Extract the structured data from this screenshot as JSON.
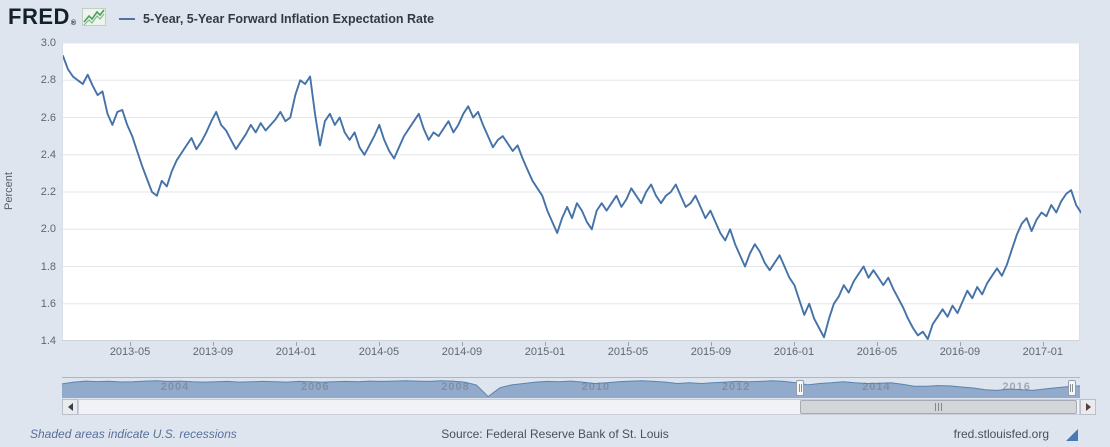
{
  "header": {
    "logo_text": "FRED",
    "registered_mark": "®",
    "legend_label": "5-Year, 5-Year Forward Inflation Expectation Rate"
  },
  "footer": {
    "recessions_note": "Shaded areas indicate U.S. recessions",
    "source": "Source: Federal Reserve Bank of St. Louis",
    "site": "fred.stlouisfed.org"
  },
  "colors": {
    "background": "#dee5ef",
    "plot_background": "#ffffff",
    "line": "#4572a7",
    "gridline": "#e4e6e9",
    "navigator_fill": "#92abcc",
    "navigator_stroke": "#5b83ae",
    "logo_sparkline_green": "#4d9e5f",
    "footer_accent": "#4779b4"
  },
  "chart_data": {
    "type": "line",
    "title": "5-Year, 5-Year Forward Inflation Expectation Rate",
    "ylabel": "Percent",
    "ylim": [
      1.4,
      3.0
    ],
    "grid": "horizontal",
    "legend_position": "top-left",
    "yticks": [
      "3.0",
      "2.8",
      "2.6",
      "2.4",
      "2.2",
      "2.0",
      "1.8",
      "1.6",
      "1.4"
    ],
    "xticks": [
      "2013-05",
      "2013-09",
      "2014-01",
      "2014-05",
      "2014-09",
      "2015-01",
      "2015-05",
      "2015-09",
      "2016-01",
      "2016-05",
      "2016-09",
      "2017-01"
    ],
    "series": [
      {
        "name": "5-Year, 5-Year Forward Inflation Expectation Rate",
        "units": "Percent",
        "x_start": "2013-02",
        "x_end": "2017-02",
        "sampling": "weekly",
        "values": [
          2.93,
          2.86,
          2.82,
          2.8,
          2.78,
          2.83,
          2.77,
          2.72,
          2.74,
          2.62,
          2.56,
          2.63,
          2.64,
          2.56,
          2.5,
          2.42,
          2.34,
          2.27,
          2.2,
          2.18,
          2.26,
          2.23,
          2.31,
          2.37,
          2.41,
          2.45,
          2.49,
          2.43,
          2.47,
          2.52,
          2.58,
          2.63,
          2.56,
          2.53,
          2.48,
          2.43,
          2.47,
          2.51,
          2.56,
          2.52,
          2.57,
          2.53,
          2.56,
          2.59,
          2.63,
          2.58,
          2.6,
          2.72,
          2.8,
          2.78,
          2.82,
          2.62,
          2.45,
          2.58,
          2.62,
          2.56,
          2.6,
          2.52,
          2.48,
          2.52,
          2.44,
          2.4,
          2.45,
          2.5,
          2.56,
          2.48,
          2.42,
          2.38,
          2.44,
          2.5,
          2.54,
          2.58,
          2.62,
          2.54,
          2.48,
          2.52,
          2.5,
          2.54,
          2.58,
          2.52,
          2.56,
          2.62,
          2.66,
          2.6,
          2.63,
          2.56,
          2.5,
          2.44,
          2.48,
          2.5,
          2.46,
          2.42,
          2.45,
          2.38,
          2.32,
          2.26,
          2.22,
          2.18,
          2.1,
          2.04,
          1.98,
          2.06,
          2.12,
          2.06,
          2.14,
          2.1,
          2.04,
          2.0,
          2.1,
          2.14,
          2.1,
          2.14,
          2.18,
          2.12,
          2.16,
          2.22,
          2.18,
          2.14,
          2.2,
          2.24,
          2.18,
          2.14,
          2.18,
          2.2,
          2.24,
          2.18,
          2.12,
          2.14,
          2.18,
          2.12,
          2.06,
          2.1,
          2.04,
          1.98,
          1.94,
          2.0,
          1.92,
          1.86,
          1.8,
          1.87,
          1.92,
          1.88,
          1.82,
          1.78,
          1.82,
          1.86,
          1.8,
          1.74,
          1.7,
          1.62,
          1.54,
          1.6,
          1.52,
          1.47,
          1.42,
          1.52,
          1.6,
          1.64,
          1.7,
          1.66,
          1.72,
          1.76,
          1.8,
          1.74,
          1.78,
          1.74,
          1.7,
          1.74,
          1.68,
          1.63,
          1.58,
          1.52,
          1.47,
          1.43,
          1.45,
          1.41,
          1.49,
          1.53,
          1.57,
          1.53,
          1.59,
          1.55,
          1.61,
          1.67,
          1.63,
          1.69,
          1.65,
          1.71,
          1.75,
          1.79,
          1.75,
          1.81,
          1.89,
          1.97,
          2.03,
          2.06,
          1.99,
          2.05,
          2.09,
          2.07,
          2.13,
          2.09,
          2.15,
          2.19,
          2.21,
          2.13,
          2.09
        ]
      }
    ],
    "navigator": {
      "type": "area",
      "x_start": "2003",
      "x_end": "2017",
      "ylim": [
        0.4,
        3.3
      ],
      "year_labels": [
        "2004",
        "2006",
        "2008",
        "2010",
        "2012",
        "2014",
        "2016"
      ],
      "selection_fractions": [
        0.725,
        0.992
      ],
      "values": [
        2.45,
        2.7,
        2.85,
        2.78,
        2.82,
        2.72,
        2.75,
        2.85,
        2.9,
        2.8,
        2.85,
        2.75,
        2.7,
        2.75,
        2.8,
        2.7,
        2.75,
        2.8,
        2.75,
        2.7,
        2.8,
        2.75,
        2.7,
        2.75,
        2.8,
        2.75,
        2.85,
        2.8,
        2.85,
        2.9,
        2.85,
        2.8,
        2.9,
        2.85,
        2.7,
        2.3,
        0.6,
        1.9,
        2.3,
        2.5,
        2.7,
        2.8,
        2.75,
        2.85,
        2.7,
        2.5,
        2.6,
        2.75,
        2.85,
        2.9,
        2.8,
        2.7,
        2.5,
        2.6,
        2.5,
        2.6,
        2.7,
        2.8,
        2.75,
        2.8,
        2.9,
        2.8,
        2.6,
        2.3,
        2.5,
        2.6,
        2.75,
        2.6,
        2.5,
        2.55,
        2.6,
        2.4,
        2.1,
        2.1,
        2.2,
        2.15,
        2.0,
        1.85,
        1.6,
        1.5,
        1.7,
        1.6,
        1.5,
        1.7,
        1.9,
        2.05,
        2.15
      ]
    }
  }
}
